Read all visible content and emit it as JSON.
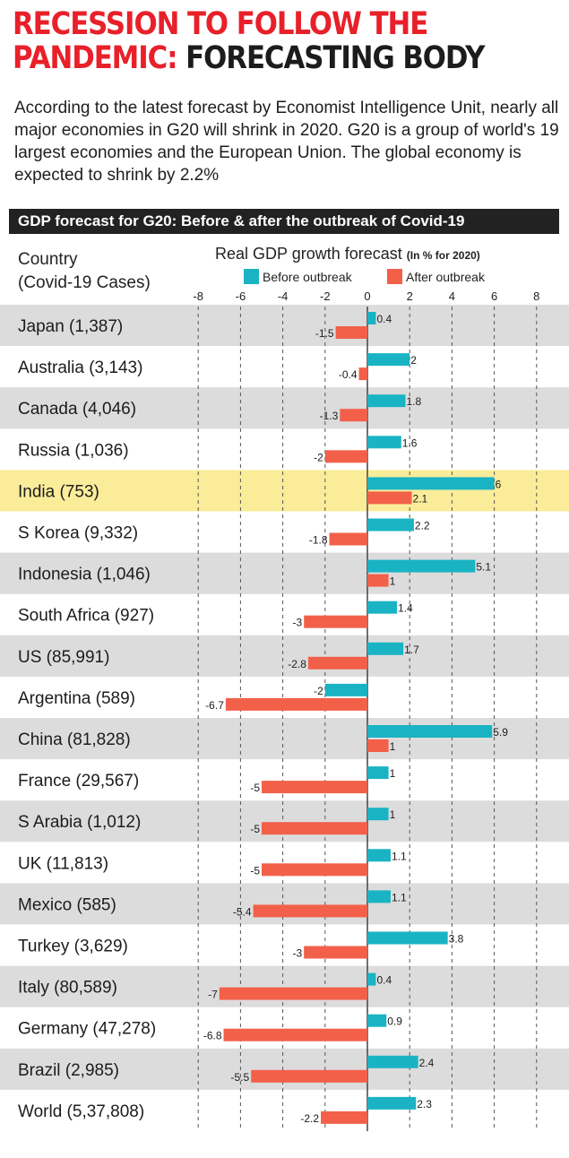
{
  "headline": {
    "red": "RECESSION TO FOLLOW THE PANDEMIC:",
    "dark": "FORECASTING BODY"
  },
  "intro": "According to the latest forecast by Economist Intelligence Unit, nearly all major economies in G20 will shrink in 2020. G20 is a group of world's 19 largest economies and the European Union. The global economy is expected to shrink by 2.2%",
  "banner": "GDP forecast for G20: Before & after the outbreak of Covid-19",
  "chart_data": {
    "type": "bar",
    "orientation": "horizontal",
    "title": "Real GDP growth forecast",
    "unit_note": "(In % for 2020)",
    "column_header": [
      "Country",
      "(Covid-19 Cases)"
    ],
    "xlim": [
      -8,
      8
    ],
    "xticks": [
      -8,
      -6,
      -4,
      -2,
      0,
      2,
      4,
      6,
      8
    ],
    "highlight": "India (753)",
    "colors": {
      "before": "#1ab3c4",
      "after": "#f2604a",
      "highlight": "#fbec9a",
      "stripe": "#dcdcdc"
    },
    "categories": [
      "Japan (1,387)",
      "Australia (3,143)",
      "Canada (4,046)",
      "Russia (1,036)",
      "India (753)",
      "S Korea (9,332)",
      "Indonesia (1,046)",
      "South Africa (927)",
      "US (85,991)",
      "Argentina (589)",
      "China (81,828)",
      "France (29,567)",
      "S Arabia (1,012)",
      "UK (11,813)",
      "Mexico (585)",
      "Turkey (3,629)",
      "Italy (80,589)",
      "Germany (47,278)",
      "Brazil (2,985)",
      "World (5,37,808)"
    ],
    "series": [
      {
        "name": "Before outbreak",
        "values": [
          0.4,
          2,
          1.8,
          1.6,
          6,
          2.2,
          5.1,
          1.4,
          1.7,
          -2,
          5.9,
          1,
          1,
          1.1,
          1.1,
          3.8,
          0.4,
          0.9,
          2.4,
          2.3
        ],
        "labels": [
          "0.4",
          "2",
          "1.8",
          "1.6",
          "6",
          "2.2",
          "5.1",
          "1.4",
          "1.7",
          "-2",
          "5.9",
          "1",
          "1",
          "1.1",
          "1.1",
          "3.8",
          "0.4",
          "0.9",
          "2.4",
          "2.3"
        ]
      },
      {
        "name": "After outbreak",
        "values": [
          -1.5,
          -0.4,
          -1.3,
          -2,
          2.1,
          -1.8,
          1,
          -3,
          -2.8,
          -6.7,
          1,
          -5,
          -5,
          -5,
          -5.4,
          -3,
          -7,
          -6.8,
          -5.5,
          -2.2
        ],
        "labels": [
          "-1.5",
          "-0.4",
          "-1.3",
          "-2",
          "2.1",
          "-1.8",
          "1",
          "-3",
          "-2.8",
          "-6.7",
          "1",
          "-5",
          "-5",
          "-5",
          "-5.4",
          "-3",
          "-7",
          "-6.8",
          "-5.5",
          "-2.2"
        ]
      }
    ]
  }
}
